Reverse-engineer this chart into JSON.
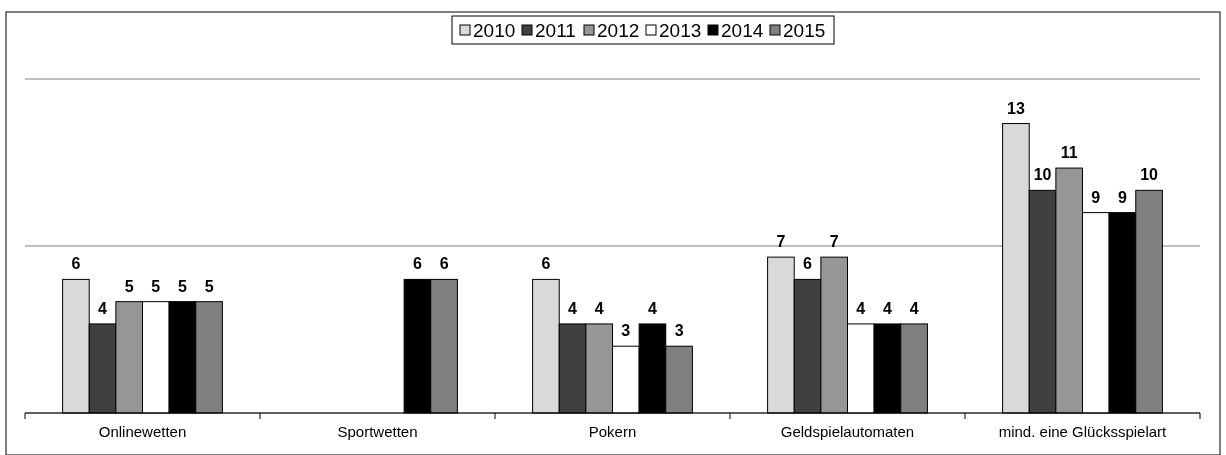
{
  "chart_data": {
    "type": "bar",
    "categories": [
      "Onlinewetten",
      "Sportwetten",
      "Pokern",
      "Geldspielautomaten",
      "mind. eine Glücksspielart"
    ],
    "series": [
      {
        "name": "2010",
        "color": "#d9d9d9",
        "values": [
          6,
          null,
          6,
          7,
          13
        ]
      },
      {
        "name": "2011",
        "color": "#404040",
        "values": [
          4,
          null,
          4,
          6,
          10
        ]
      },
      {
        "name": "2012",
        "color": "#969696",
        "values": [
          5,
          null,
          4,
          7,
          11
        ]
      },
      {
        "name": "2013",
        "color": "#ffffff",
        "values": [
          5,
          null,
          3,
          4,
          9
        ]
      },
      {
        "name": "2014",
        "color": "#000000",
        "values": [
          5,
          6,
          4,
          4,
          9
        ]
      },
      {
        "name": "2015",
        "color": "#808080",
        "values": [
          5,
          6,
          3,
          4,
          10
        ]
      }
    ],
    "ylim": [
      0,
      15
    ],
    "yticks": [
      {
        "value": 0,
        "label": null
      },
      {
        "value": 7.5,
        "label": null
      },
      {
        "value": 15,
        "label": null
      }
    ],
    "tick_labels": "x",
    "grid": "y",
    "legend": "top",
    "data_labels": true
  }
}
